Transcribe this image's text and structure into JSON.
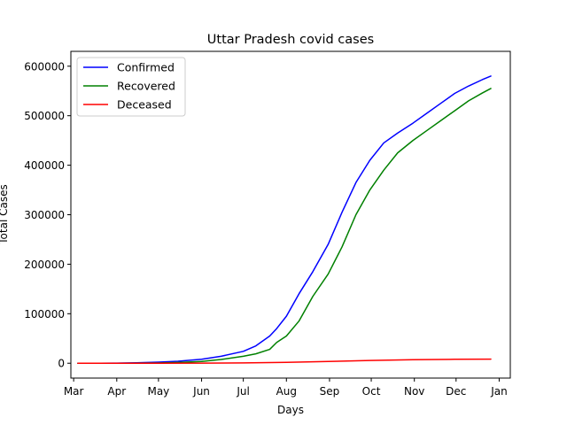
{
  "chart_data": {
    "type": "line",
    "title": "Uttar Pradesh covid cases",
    "xlabel": "Days",
    "ylabel": "Total Cases",
    "x_ticks": [
      "Mar",
      "Apr",
      "May",
      "Jun",
      "Jul",
      "Aug",
      "Sep",
      "Oct",
      "Nov",
      "Dec",
      "Jan"
    ],
    "y_ticks": [
      "0",
      "100000",
      "200000",
      "300000",
      "400000",
      "500000",
      "600000"
    ],
    "xlim": [
      "2020-02-28",
      "2021-01-09"
    ],
    "ylim": [
      -30000,
      630000
    ],
    "grid": false,
    "legend_position": "top-left",
    "series": [
      {
        "name": "Confirmed",
        "color": "#0000ff",
        "x": [
          "2020-03-04",
          "2020-03-20",
          "2020-04-01",
          "2020-04-15",
          "2020-05-01",
          "2020-05-15",
          "2020-06-01",
          "2020-06-15",
          "2020-07-01",
          "2020-07-10",
          "2020-07-20",
          "2020-07-25",
          "2020-08-01",
          "2020-08-10",
          "2020-08-20",
          "2020-08-31",
          "2020-09-10",
          "2020-09-20",
          "2020-09-30",
          "2020-10-10",
          "2020-10-20",
          "2020-10-31",
          "2020-11-10",
          "2020-11-20",
          "2020-11-30",
          "2020-12-10",
          "2020-12-20",
          "2020-12-26"
        ],
        "values": [
          0,
          0,
          100,
          800,
          2300,
          4000,
          8000,
          14000,
          24000,
          35000,
          55000,
          70000,
          95000,
          140000,
          185000,
          240000,
          305000,
          365000,
          410000,
          445000,
          465000,
          485000,
          505000,
          525000,
          545000,
          560000,
          573000,
          580000
        ]
      },
      {
        "name": "Recovered",
        "color": "#008000",
        "x": [
          "2020-03-04",
          "2020-03-20",
          "2020-04-01",
          "2020-04-15",
          "2020-05-01",
          "2020-05-15",
          "2020-06-01",
          "2020-06-15",
          "2020-07-01",
          "2020-07-10",
          "2020-07-20",
          "2020-07-25",
          "2020-08-01",
          "2020-08-10",
          "2020-08-20",
          "2020-08-31",
          "2020-09-10",
          "2020-09-20",
          "2020-09-30",
          "2020-10-10",
          "2020-10-20",
          "2020-10-31",
          "2020-11-10",
          "2020-11-20",
          "2020-11-30",
          "2020-12-10",
          "2020-12-20",
          "2020-12-26"
        ],
        "values": [
          0,
          0,
          0,
          100,
          500,
          1500,
          3500,
          7500,
          14000,
          19000,
          28000,
          42000,
          55000,
          85000,
          135000,
          180000,
          235000,
          300000,
          350000,
          390000,
          425000,
          450000,
          470000,
          490000,
          510000,
          530000,
          546000,
          555000
        ]
      },
      {
        "name": "Deceased",
        "color": "#ff0000",
        "x": [
          "2020-03-04",
          "2020-04-01",
          "2020-05-01",
          "2020-06-01",
          "2020-07-01",
          "2020-08-01",
          "2020-08-31",
          "2020-09-30",
          "2020-10-31",
          "2020-11-30",
          "2020-12-26"
        ],
        "values": [
          0,
          0,
          50,
          200,
          700,
          1700,
          3500,
          5600,
          7000,
          7900,
          8300
        ]
      }
    ]
  }
}
